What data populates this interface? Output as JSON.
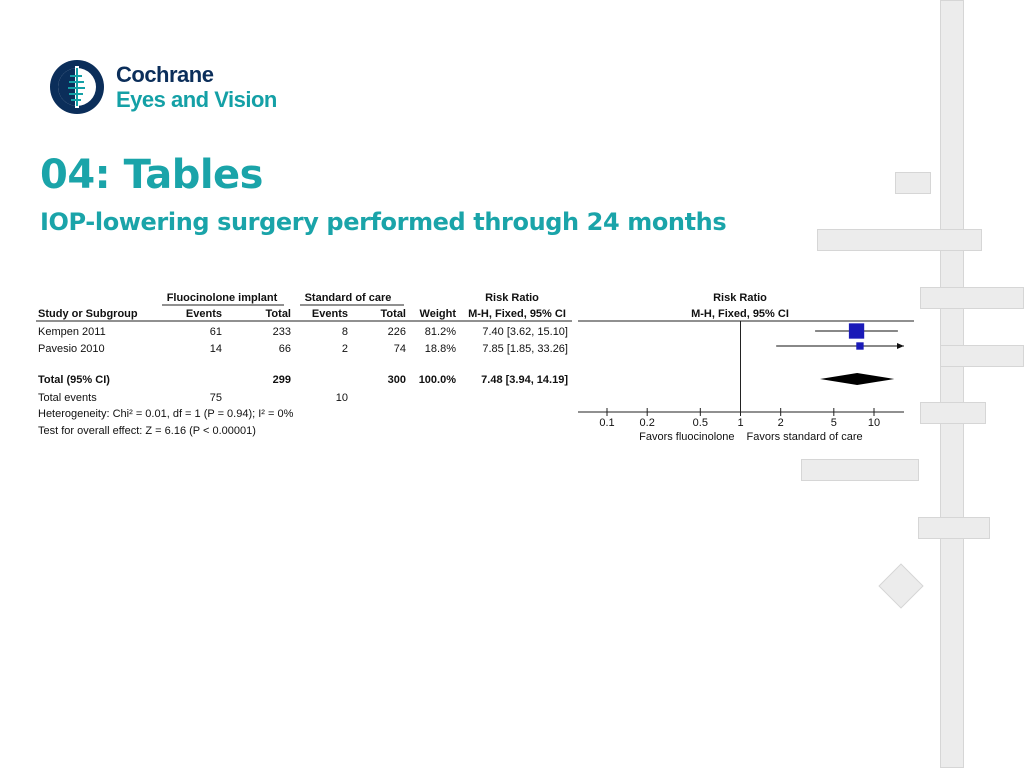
{
  "brand": {
    "line1": "Cochrane",
    "line2": "Eyes and Vision"
  },
  "heading": {
    "title": "04: Tables",
    "subtitle": "IOP-lowering surgery performed through 24 months"
  },
  "colors": {
    "teal": "#1aa4a9",
    "navy": "#0b2e5a",
    "marker": "#1a1ab8"
  },
  "table": {
    "group1_header": "Fluocinolone implant",
    "group2_header": "Standard of care",
    "rr_header_table": "Risk Ratio",
    "rr_header_plot": "Risk Ratio",
    "col_study": "Study or Subgroup",
    "col_events1": "Events",
    "col_total1": "Total",
    "col_events2": "Events",
    "col_total2": "Total",
    "col_weight": "Weight",
    "col_method": "M-H, Fixed, 95% CI",
    "col_method_plot": "M-H, Fixed, 95% CI",
    "rows": [
      {
        "study": "Kempen 2011",
        "events1": "61",
        "total1": "233",
        "events2": "8",
        "total2": "226",
        "weight": "81.2%",
        "ci": "7.40 [3.62, 15.10]"
      },
      {
        "study": "Pavesio 2010",
        "events1": "14",
        "total1": "66",
        "events2": "2",
        "total2": "74",
        "weight": "18.8%",
        "ci": "7.85 [1.85, 33.26]"
      }
    ],
    "total": {
      "label": "Total (95% CI)",
      "total1": "299",
      "total2": "300",
      "weight": "100.0%",
      "ci": "7.48 [3.94, 14.19]"
    },
    "total_events": {
      "label": "Total events",
      "events1": "75",
      "events2": "10"
    },
    "heterogeneity": "Heterogeneity: Chi² = 0.01, df = 1 (P = 0.94); I² = 0%",
    "overall_effect": "Test for overall effect: Z = 6.16 (P < 0.00001)"
  },
  "chart_data": {
    "type": "forest",
    "scale": "log",
    "xlim": [
      0.1,
      10
    ],
    "ticks": [
      0.1,
      0.2,
      0.5,
      1,
      2,
      5,
      10
    ],
    "tick_labels": [
      "0.1",
      "0.2",
      "0.5",
      "1",
      "2",
      "5",
      "10"
    ],
    "null_line": 1,
    "left_label": "Favors fluocinolone",
    "right_label": "Favors standard of care",
    "studies": [
      {
        "name": "Kempen 2011",
        "rr": 7.4,
        "lower": 3.62,
        "upper": 15.1,
        "weight": 81.2
      },
      {
        "name": "Pavesio 2010",
        "rr": 7.85,
        "lower": 1.85,
        "upper": 33.26,
        "weight": 18.8
      }
    ],
    "pooled": {
      "name": "Total (95% CI)",
      "rr": 7.48,
      "lower": 3.94,
      "upper": 14.19
    }
  }
}
